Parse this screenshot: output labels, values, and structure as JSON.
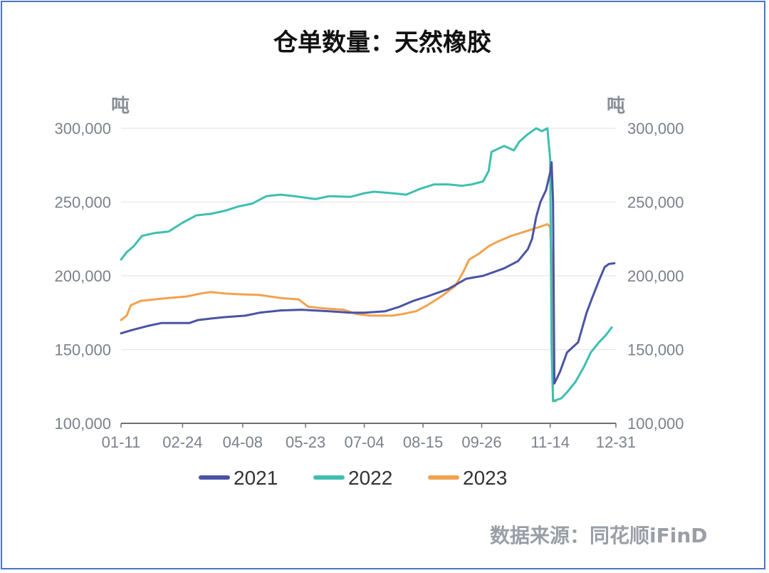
{
  "title": "仓单数量：天然橡胶",
  "source": "数据来源：同花顺iFinD",
  "chart_data": {
    "type": "line",
    "y_unit_left": "吨",
    "y_unit_right": "吨",
    "ylim": [
      100000,
      300000
    ],
    "y_ticks": [
      "100,000",
      "150,000",
      "200,000",
      "250,000",
      "300,000"
    ],
    "y_tick_values": [
      100000,
      150000,
      200000,
      250000,
      300000
    ],
    "x_ticks": [
      "01-11",
      "02-24",
      "04-08",
      "05-23",
      "07-04",
      "08-15",
      "09-26",
      "11-14",
      "12-31"
    ],
    "x_tick_days": [
      11,
      55,
      98,
      143,
      185,
      227,
      269,
      318,
      365
    ],
    "grid": true,
    "legend_position": "bottom",
    "colors": {
      "2021": "#4b53a3",
      "2022": "#3dbfb0",
      "2023": "#f2a250"
    },
    "series": [
      {
        "name": "2021",
        "color": "#4b53a3",
        "points": [
          [
            11,
            161000
          ],
          [
            18,
            163000
          ],
          [
            30,
            166000
          ],
          [
            40,
            168000
          ],
          [
            60,
            168000
          ],
          [
            66,
            170000
          ],
          [
            75,
            171000
          ],
          [
            85,
            172000
          ],
          [
            100,
            173000
          ],
          [
            110,
            175000
          ],
          [
            125,
            176500
          ],
          [
            140,
            177000
          ],
          [
            160,
            176000
          ],
          [
            175,
            175000
          ],
          [
            185,
            175000
          ],
          [
            200,
            176000
          ],
          [
            210,
            179000
          ],
          [
            220,
            183000
          ],
          [
            230,
            186000
          ],
          [
            245,
            191000
          ],
          [
            258,
            198000
          ],
          [
            270,
            200000
          ],
          [
            285,
            205000
          ],
          [
            295,
            210000
          ],
          [
            302,
            218000
          ],
          [
            305,
            225000
          ],
          [
            308,
            240000
          ],
          [
            311,
            250000
          ],
          [
            315,
            258000
          ],
          [
            318,
            270000
          ],
          [
            319,
            277000
          ],
          [
            320,
            250000
          ],
          [
            321,
            127000
          ],
          [
            325,
            135000
          ],
          [
            330,
            148000
          ],
          [
            338,
            155000
          ],
          [
            344,
            175000
          ],
          [
            348,
            185000
          ],
          [
            353,
            197000
          ],
          [
            357,
            206000
          ],
          [
            360,
            208000
          ],
          [
            364,
            208500
          ]
        ]
      },
      {
        "name": "2022",
        "color": "#3dbfb0",
        "points": [
          [
            11,
            211000
          ],
          [
            15,
            216000
          ],
          [
            20,
            220000
          ],
          [
            26,
            227000
          ],
          [
            35,
            229000
          ],
          [
            45,
            230000
          ],
          [
            55,
            236000
          ],
          [
            65,
            241000
          ],
          [
            75,
            242000
          ],
          [
            85,
            244000
          ],
          [
            95,
            247000
          ],
          [
            105,
            249000
          ],
          [
            115,
            254000
          ],
          [
            125,
            255000
          ],
          [
            135,
            254000
          ],
          [
            150,
            252000
          ],
          [
            160,
            254000
          ],
          [
            175,
            253500
          ],
          [
            185,
            256000
          ],
          [
            192,
            257000
          ],
          [
            205,
            256000
          ],
          [
            215,
            255000
          ],
          [
            225,
            259000
          ],
          [
            235,
            262000
          ],
          [
            245,
            262000
          ],
          [
            255,
            261000
          ],
          [
            262,
            262000
          ],
          [
            270,
            264000
          ],
          [
            274,
            271000
          ],
          [
            276,
            284000
          ],
          [
            285,
            288000
          ],
          [
            292,
            285000
          ],
          [
            296,
            291000
          ],
          [
            302,
            296000
          ],
          [
            308,
            300000
          ],
          [
            312,
            298000
          ],
          [
            316,
            300000
          ],
          [
            318,
            279000
          ],
          [
            319,
            150000
          ],
          [
            320,
            115000
          ],
          [
            326,
            117000
          ],
          [
            330,
            121000
          ],
          [
            336,
            128000
          ],
          [
            342,
            138000
          ],
          [
            347,
            148000
          ],
          [
            353,
            155000
          ],
          [
            358,
            160000
          ],
          [
            362,
            165000
          ]
        ]
      },
      {
        "name": "2023",
        "color": "#f2a250",
        "points": [
          [
            11,
            170000
          ],
          [
            15,
            173000
          ],
          [
            18,
            180000
          ],
          [
            25,
            183000
          ],
          [
            35,
            184000
          ],
          [
            45,
            185000
          ],
          [
            58,
            186000
          ],
          [
            68,
            188000
          ],
          [
            75,
            189000
          ],
          [
            85,
            188000
          ],
          [
            95,
            187500
          ],
          [
            110,
            187000
          ],
          [
            125,
            185000
          ],
          [
            138,
            184000
          ],
          [
            145,
            179000
          ],
          [
            155,
            178000
          ],
          [
            170,
            177000
          ],
          [
            180,
            174000
          ],
          [
            190,
            173000
          ],
          [
            205,
            173000
          ],
          [
            212,
            174000
          ],
          [
            222,
            176000
          ],
          [
            230,
            180000
          ],
          [
            240,
            186000
          ],
          [
            250,
            193000
          ],
          [
            256,
            203000
          ],
          [
            260,
            211000
          ],
          [
            267,
            215000
          ],
          [
            274,
            220000
          ],
          [
            280,
            223000
          ],
          [
            290,
            227000
          ],
          [
            300,
            230000
          ],
          [
            310,
            233000
          ],
          [
            316,
            235000
          ],
          [
            318,
            233000
          ],
          [
            319,
            210000
          ],
          [
            320,
            116000
          ],
          [
            322,
            115000
          ]
        ]
      }
    ]
  }
}
